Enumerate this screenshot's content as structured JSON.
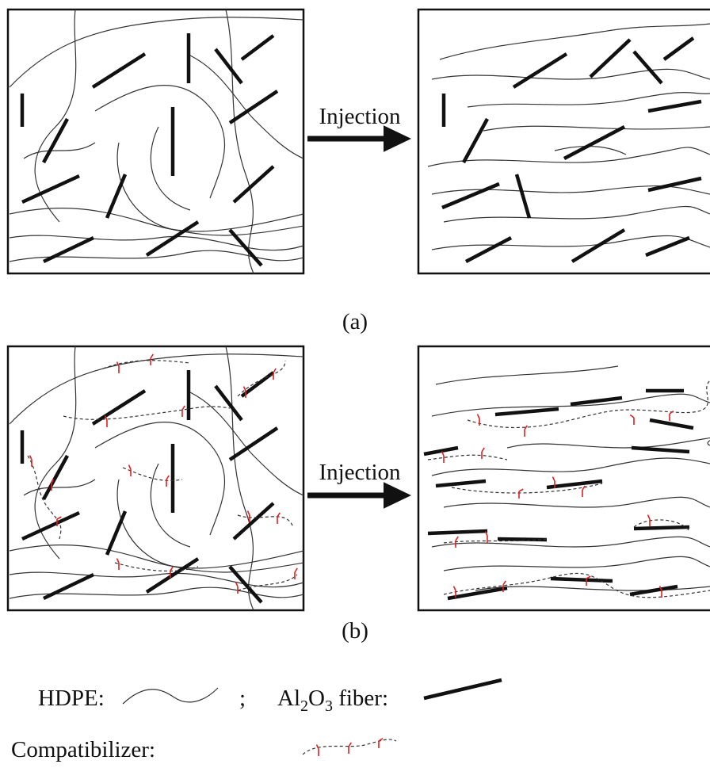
{
  "panels": {
    "a": {
      "arrow_label": "Injection",
      "caption": "(a)"
    },
    "b": {
      "arrow_label": "Injection",
      "caption": "(b)"
    }
  },
  "legend": {
    "hdpe": "HDPE:",
    "separator": ";",
    "fiber": [
      "Al",
      "2",
      "O",
      "3",
      " fiber:"
    ],
    "compatibilizer": "Compatibilizer:"
  }
}
